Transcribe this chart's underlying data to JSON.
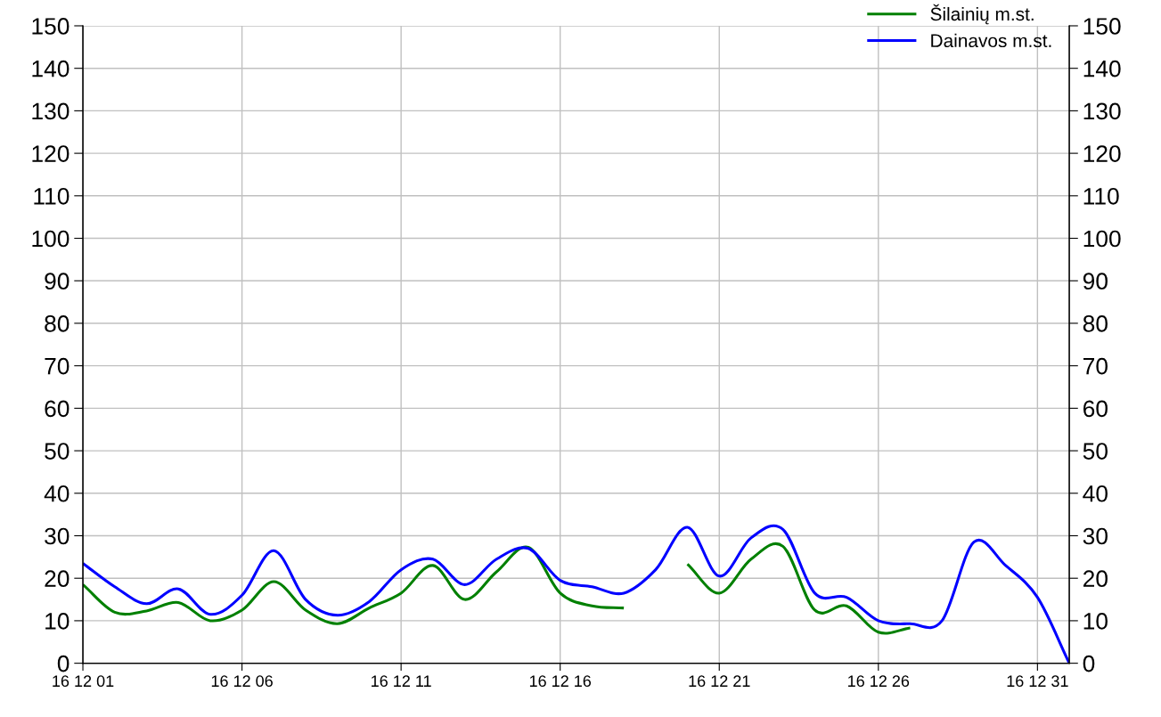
{
  "chart_data": {
    "type": "line",
    "categories": [
      "16 12 01",
      null,
      null,
      null,
      null,
      "16 12 06",
      null,
      null,
      null,
      null,
      "16 12 11",
      null,
      null,
      null,
      null,
      "16 12 16",
      null,
      null,
      null,
      null,
      "16 12 21",
      null,
      null,
      null,
      null,
      "16 12 26",
      null,
      null,
      null,
      null,
      "16 12 31",
      null
    ],
    "series": [
      {
        "name": "Šilainių m.st.",
        "color": "#008000",
        "values": [
          18.5,
          12,
          12.3,
          14.3,
          10,
          12.5,
          19.2,
          12.5,
          9.3,
          13,
          16.5,
          23,
          15,
          21.5,
          27.3,
          16.5,
          13.5,
          13,
          null,
          23.3,
          16.5,
          24.5,
          27.5,
          12.5,
          13.5,
          7.3,
          8.3,
          null,
          null,
          null,
          null,
          null
        ]
      },
      {
        "name": "Dainavos m.st.",
        "color": "#0000ff",
        "values": [
          23.5,
          18,
          14,
          17.5,
          11.5,
          16,
          26.5,
          15,
          11.3,
          14.5,
          22,
          24.5,
          18.5,
          24.5,
          27,
          19.5,
          18,
          16.5,
          22,
          32,
          20.5,
          29.5,
          31.5,
          16.5,
          15.5,
          10,
          9.3,
          10,
          28.5,
          23,
          15.5,
          0
        ]
      }
    ],
    "ylim": [
      0,
      150
    ],
    "yticks": [
      0,
      10,
      20,
      30,
      40,
      50,
      60,
      70,
      80,
      90,
      100,
      110,
      120,
      130,
      140,
      150
    ],
    "y2lim": [
      0,
      150
    ],
    "y2ticks": [
      0,
      10,
      20,
      30,
      40,
      50,
      60,
      70,
      80,
      90,
      100,
      110,
      120,
      130,
      140,
      150
    ],
    "grid": true,
    "legend": "top right",
    "marker": "none",
    "line_style": "solid"
  }
}
